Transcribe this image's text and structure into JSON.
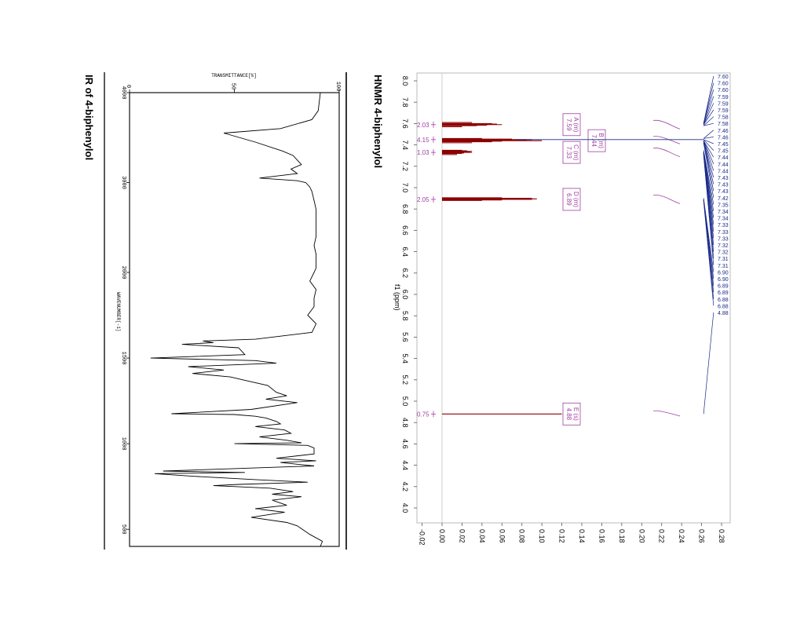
{
  "ir": {
    "title": "IR of 4-biphenylol",
    "ylabel": "TRANSMITTANCE[%]",
    "xlabel": "WAVENUMBER[-1]",
    "y_ticks": [
      "0",
      "50",
      "100"
    ],
    "x_ticks": [
      "4000",
      "3000",
      "2000",
      "1500",
      "1000",
      "500"
    ]
  },
  "nmr": {
    "title": "HNMR 4-biphenylol",
    "xlabel": "f1 (ppm)",
    "ppm_ticks": [
      "8.0",
      "7.8",
      "7.6",
      "7.4",
      "7.2",
      "7.0",
      "6.8",
      "6.6",
      "6.4",
      "6.2",
      "6.0",
      "5.8",
      "5.6",
      "5.4",
      "5.2",
      "5.0",
      "4.8",
      "4.6",
      "4.4",
      "4.2",
      "4.0"
    ],
    "int_ticks": [
      "-0.02",
      "0.00",
      "0.02",
      "0.04",
      "0.06",
      "0.08",
      "0.10",
      "0.12",
      "0.14",
      "0.16",
      "0.18",
      "0.20",
      "0.22",
      "0.24",
      "0.26",
      "0.28"
    ],
    "multiplets": [
      {
        "letter": "A (m)",
        "shift": "7.59"
      },
      {
        "letter": "B (m)",
        "shift": "7.44"
      },
      {
        "letter": "C (m)",
        "shift": "7.33"
      },
      {
        "letter": "D (m)",
        "shift": "6.89"
      },
      {
        "letter": "E (s)",
        "shift": "4.88"
      }
    ],
    "integrals": [
      "2.03",
      "4.15",
      "1.03",
      "2.05",
      "0.75"
    ],
    "peak_labels": [
      "7.60",
      "7.60",
      "7.60",
      "7.59",
      "7.59",
      "7.59",
      "7.58",
      "7.58",
      "7.46",
      "7.46",
      "7.45",
      "7.45",
      "7.44",
      "7.44",
      "7.44",
      "7.43",
      "7.43",
      "7.43",
      "7.42",
      "7.35",
      "7.34",
      "7.34",
      "7.33",
      "7.33",
      "7.33",
      "7.32",
      "7.32",
      "7.31",
      "7.31",
      "6.90",
      "6.90",
      "6.89",
      "6.89",
      "6.88",
      "6.88",
      "4.88"
    ]
  },
  "chart_data": [
    {
      "type": "line",
      "title": "IR of 4-biphenylol",
      "xlabel": "WAVENUMBER[-1]",
      "ylabel": "TRANSMITTANCE[%]",
      "xlim": [
        4000,
        400
      ],
      "ylim": [
        0,
        100
      ],
      "series": [
        {
          "x": [
            4000,
            3800,
            3700,
            3600,
            3550,
            3450,
            3350,
            3300,
            3250,
            3200,
            3150,
            3100,
            3050,
            3020,
            3000,
            2950,
            2900,
            2800,
            2700,
            2600,
            2500,
            2400,
            2300,
            2200,
            2100,
            2050,
            2000,
            1950,
            1900,
            1850,
            1800,
            1750,
            1700,
            1650,
            1610,
            1600,
            1590,
            1580,
            1560,
            1520,
            1500,
            1485,
            1470,
            1450,
            1430,
            1410,
            1390,
            1370,
            1340,
            1300,
            1280,
            1260,
            1240,
            1200,
            1175,
            1170,
            1160,
            1150,
            1130,
            1115,
            1100,
            1080,
            1060,
            1040,
            1020,
            1005,
            1000,
            990,
            975,
            940,
            915,
            900,
            890,
            870,
            840,
            832,
            825,
            810,
            790,
            775,
            762,
            755,
            740,
            720,
            705,
            690,
            670,
            640,
            620,
            600,
            570,
            540,
            520,
            470,
            430,
            400
          ],
          "y": [
            91,
            90,
            87,
            72,
            45,
            60,
            73,
            78,
            80,
            82,
            77,
            80,
            62,
            80,
            84,
            86,
            87,
            88,
            89,
            89,
            89,
            89,
            88,
            89,
            89,
            89,
            88,
            86,
            89,
            88,
            88,
            85,
            89,
            87,
            60,
            35,
            40,
            25,
            52,
            55,
            10,
            60,
            70,
            28,
            45,
            30,
            48,
            55,
            66,
            70,
            75,
            65,
            80,
            58,
            20,
            50,
            60,
            65,
            70,
            72,
            60,
            74,
            77,
            62,
            75,
            82,
            50,
            85,
            88,
            88,
            70,
            89,
            72,
            88,
            16,
            55,
            12,
            30,
            60,
            85,
            52,
            40,
            67,
            78,
            68,
            82,
            68,
            75,
            60,
            74,
            58,
            75,
            80,
            86,
            92,
            91
          ]
        }
      ]
    },
    {
      "type": "line",
      "title": "HNMR 4-biphenylol",
      "xlabel": "f1 (ppm)",
      "xlim": [
        8.1,
        3.9
      ],
      "ylim": [
        -0.025,
        0.285
      ],
      "series": [
        {
          "name": "spectrum",
          "x": [
            7.61,
            7.6,
            7.595,
            7.59,
            7.585,
            7.58,
            7.57,
            7.46,
            7.455,
            7.45,
            7.445,
            7.44,
            7.435,
            7.43,
            7.42,
            7.35,
            7.345,
            7.34,
            7.335,
            7.33,
            7.325,
            7.32,
            7.31,
            6.905,
            6.9,
            6.895,
            6.89,
            6.885,
            6.88,
            4.88
          ],
          "y": [
            0.03,
            0.05,
            0.055,
            0.06,
            0.045,
            0.035,
            0.02,
            0.04,
            0.07,
            0.09,
            0.085,
            0.1,
            0.06,
            0.05,
            0.03,
            0.02,
            0.025,
            0.03,
            0.028,
            0.03,
            0.022,
            0.02,
            0.015,
            0.06,
            0.09,
            0.095,
            0.09,
            0.06,
            0.04,
            0.12
          ]
        }
      ]
    }
  ]
}
